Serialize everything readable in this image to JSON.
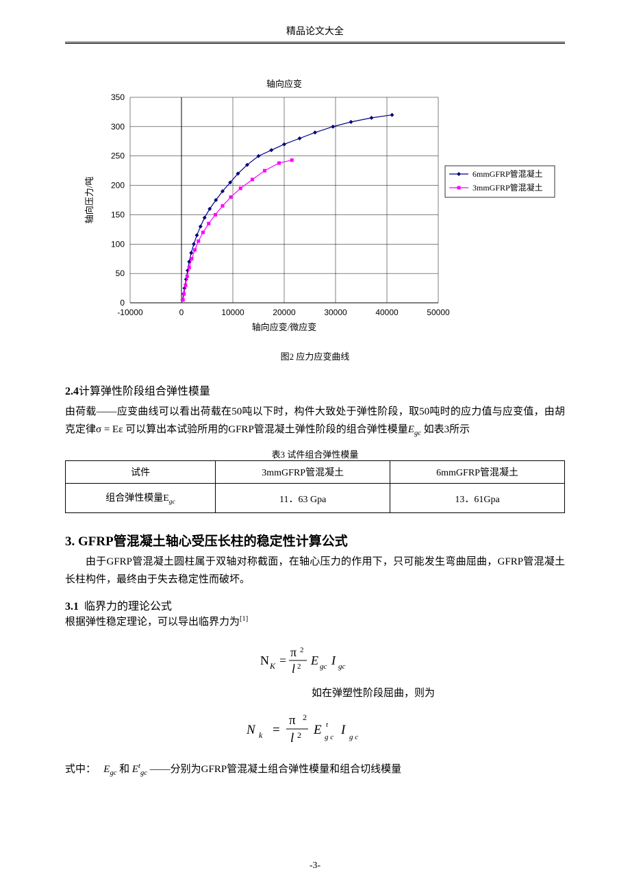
{
  "page": {
    "header": "精品论文大全",
    "number": "-3-"
  },
  "chart": {
    "type": "line-scatter",
    "title": "轴向应变",
    "title_fontsize": 13,
    "xlabel": "轴向应变/微应变",
    "ylabel": "轴向压力/吨",
    "label_fontsize": 13,
    "background_color": "#ffffff",
    "grid_color": "#000000",
    "xlim": [
      -10000,
      50000
    ],
    "xtick_step": 10000,
    "xticks": [
      "-10000",
      "0",
      "10000",
      "20000",
      "30000",
      "40000",
      "50000"
    ],
    "ylim": [
      0,
      350
    ],
    "ytick_step": 50,
    "yticks": [
      "0",
      "50",
      "100",
      "150",
      "200",
      "250",
      "300",
      "350"
    ],
    "legend_position": "right",
    "legend_border": "#000000",
    "series": [
      {
        "name": "6mmGFRP管混凝土",
        "color": "#000080",
        "marker": "diamond",
        "marker_size": 6,
        "line_width": 1.2,
        "points": [
          [
            200,
            5
          ],
          [
            400,
            15
          ],
          [
            600,
            25
          ],
          [
            900,
            40
          ],
          [
            1200,
            55
          ],
          [
            1500,
            70
          ],
          [
            1900,
            85
          ],
          [
            2400,
            100
          ],
          [
            3000,
            115
          ],
          [
            3700,
            130
          ],
          [
            4500,
            145
          ],
          [
            5500,
            160
          ],
          [
            6700,
            175
          ],
          [
            8000,
            190
          ],
          [
            9500,
            205
          ],
          [
            11000,
            220
          ],
          [
            12800,
            235
          ],
          [
            15000,
            250
          ],
          [
            17500,
            260
          ],
          [
            20000,
            270
          ],
          [
            23000,
            280
          ],
          [
            26000,
            290
          ],
          [
            29500,
            300
          ],
          [
            33000,
            308
          ],
          [
            37000,
            315
          ],
          [
            41000,
            320
          ]
        ]
      },
      {
        "name": "3mmGFRP管混凝土",
        "color": "#ff00ff",
        "marker": "square",
        "marker_size": 5,
        "line_width": 1.2,
        "points": [
          [
            300,
            5
          ],
          [
            500,
            15
          ],
          [
            800,
            30
          ],
          [
            1100,
            45
          ],
          [
            1500,
            60
          ],
          [
            2000,
            75
          ],
          [
            2600,
            90
          ],
          [
            3300,
            105
          ],
          [
            4200,
            120
          ],
          [
            5300,
            135
          ],
          [
            6600,
            150
          ],
          [
            8000,
            165
          ],
          [
            9600,
            180
          ],
          [
            11500,
            195
          ],
          [
            13800,
            210
          ],
          [
            16200,
            225
          ],
          [
            19000,
            238
          ],
          [
            21500,
            243
          ]
        ]
      }
    ]
  },
  "fig2_caption": "图2  应力应变曲线",
  "sec24": {
    "number": "2.4",
    "title": "计算弹性阶段组合弹性模量",
    "para": "由荷载——应变曲线可以看出荷载在50吨以下时，构件大致处于弹性阶段，取50吨时的应力值与应变值，由胡克定律σ = Eε 可以算出本试验所用的GFRP管混凝土弹性阶段的组合弹性模量",
    "para_tail_symbol": "E",
    "para_tail_sub": "gc",
    "para_tail_after": " 如表3所示"
  },
  "table3": {
    "caption": "表3  试件组合弹性模量",
    "columns": [
      "试件",
      "3mmGFRP管混凝土",
      "6mmGFRP管混凝土"
    ],
    "row_label_prefix": "组合弹性模量",
    "row_label_symbol": "E",
    "row_label_sub": "gc",
    "values": [
      "11．63 Gpa",
      "13．61Gpa"
    ]
  },
  "sec3": {
    "number": "3.",
    "title": "GFRP管混凝土轴心受压长柱的稳定性计算公式",
    "para": "由于GFRP管混凝土圆柱属于双轴对称截面，在轴心压力的作用下，只可能发生弯曲屈曲，GFRP管混凝土长柱构件，最终由于失去稳定性而破坏。"
  },
  "sec31": {
    "number": "3.1",
    "title": "临界力的理论公式",
    "lead": "根据弹性稳定理论，可以导出临界力为",
    "ref": "[1]",
    "formula1_note": "如在弹塑性阶段屈曲，则为",
    "def_prefix": "式中：",
    "def_E": "E",
    "def_sub1": "gc",
    "def_and": "和",
    "def_Et": "E",
    "def_sup": "t",
    "def_sub2": "gc",
    "def_dash": "——分别为GFRP管混凝土组合弹性模量和组合切线模量"
  }
}
